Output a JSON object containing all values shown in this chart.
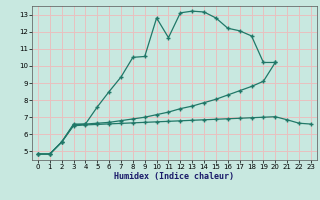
{
  "xlabel": "Humidex (Indice chaleur)",
  "ylabel": "",
  "xlim": [
    -0.5,
    23.5
  ],
  "ylim": [
    4.5,
    13.5
  ],
  "xticks": [
    0,
    1,
    2,
    3,
    4,
    5,
    6,
    7,
    8,
    9,
    10,
    11,
    12,
    13,
    14,
    15,
    16,
    17,
    18,
    19,
    20,
    21,
    22,
    23
  ],
  "yticks": [
    5,
    6,
    7,
    8,
    9,
    10,
    11,
    12,
    13
  ],
  "bg_color": "#c8e8e0",
  "grid_color": "#e8c0c0",
  "line_color": "#207868",
  "line1_x": [
    0,
    1,
    2,
    3,
    4,
    5,
    6,
    7,
    8,
    9,
    10,
    11,
    12,
    13,
    14,
    15,
    16,
    17,
    18,
    19,
    20
  ],
  "line1_y": [
    4.85,
    4.85,
    5.55,
    6.6,
    6.6,
    7.6,
    8.5,
    9.35,
    10.5,
    10.55,
    12.8,
    11.65,
    13.1,
    13.2,
    13.15,
    12.8,
    12.2,
    12.05,
    11.75,
    10.2,
    10.2
  ],
  "line2_x": [
    0,
    1,
    2,
    3,
    4,
    5,
    6,
    7,
    8,
    9,
    10,
    11,
    12,
    13,
    14,
    15,
    16,
    17,
    18,
    19,
    20
  ],
  "line2_y": [
    4.85,
    4.85,
    5.55,
    6.55,
    6.6,
    6.65,
    6.7,
    6.8,
    6.9,
    7.0,
    7.15,
    7.3,
    7.5,
    7.65,
    7.85,
    8.05,
    8.3,
    8.55,
    8.8,
    9.1,
    10.2
  ],
  "line3_x": [
    0,
    1,
    2,
    3,
    4,
    5,
    6,
    7,
    8,
    9,
    10,
    11,
    12,
    13,
    14,
    15,
    16,
    17,
    18,
    19,
    20,
    21,
    22,
    23
  ],
  "line3_y": [
    4.85,
    4.85,
    5.55,
    6.5,
    6.55,
    6.58,
    6.61,
    6.64,
    6.67,
    6.7,
    6.73,
    6.76,
    6.79,
    6.82,
    6.85,
    6.88,
    6.91,
    6.94,
    6.97,
    7.0,
    7.03,
    6.85,
    6.65,
    6.6
  ]
}
